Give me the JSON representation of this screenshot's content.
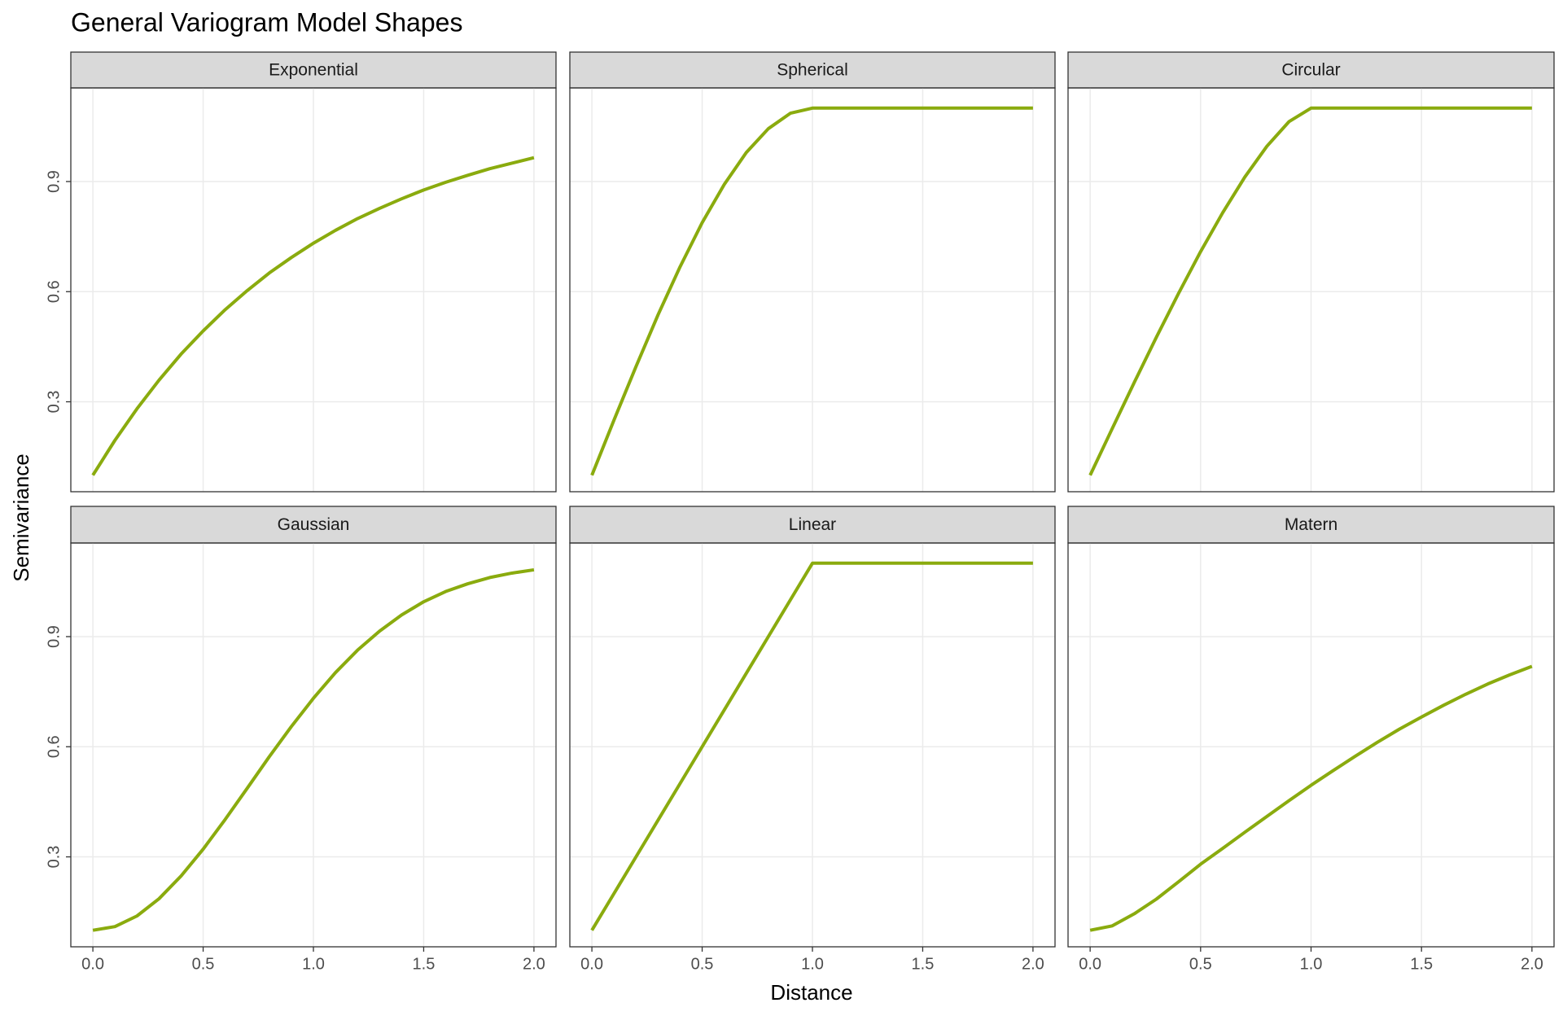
{
  "title": "General Variogram Model Shapes",
  "x_label": "Distance",
  "y_label": "Semivariance",
  "chart_data": [
    {
      "type": "line",
      "title": "Exponential",
      "color": "#8aab0e",
      "grid": true,
      "x": [
        0,
        0.1,
        0.2,
        0.3,
        0.4,
        0.5,
        0.6,
        0.7,
        0.8,
        0.9,
        1.0,
        1.1,
        1.2,
        1.3,
        1.4,
        1.5,
        1.6,
        1.7,
        1.8,
        1.9,
        2.0
      ],
      "values": [
        0.1,
        0.195,
        0.281,
        0.359,
        0.43,
        0.493,
        0.551,
        0.603,
        0.651,
        0.693,
        0.732,
        0.767,
        0.799,
        0.827,
        0.853,
        0.877,
        0.898,
        0.917,
        0.935,
        0.95,
        0.965
      ],
      "xlim": [
        -0.1,
        2.1
      ],
      "ylim": [
        0.055,
        1.155
      ],
      "xticks": [
        {
          "value": 0,
          "label": "0.0"
        },
        {
          "value": 0.5,
          "label": "0.5"
        },
        {
          "value": 1,
          "label": "1.0"
        },
        {
          "value": 1.5,
          "label": "1.5"
        },
        {
          "value": 2,
          "label": "2.0"
        }
      ],
      "yticks": [
        0.3,
        0.6,
        0.9
      ]
    },
    {
      "type": "line",
      "title": "Spherical",
      "color": "#8aab0e",
      "grid": true,
      "x": [
        0,
        0.1,
        0.2,
        0.3,
        0.4,
        0.5,
        0.6,
        0.7,
        0.8,
        0.9,
        1.0,
        1.1,
        1.2,
        1.3,
        1.4,
        1.5,
        1.6,
        1.7,
        1.8,
        1.9,
        2.0
      ],
      "values": [
        0.1,
        0.25,
        0.396,
        0.537,
        0.668,
        0.788,
        0.892,
        0.979,
        1.044,
        1.086,
        1.1,
        1.1,
        1.1,
        1.1,
        1.1,
        1.1,
        1.1,
        1.1,
        1.1,
        1.1,
        1.1
      ],
      "xlim": [
        -0.1,
        2.1
      ],
      "ylim": [
        0.055,
        1.155
      ],
      "xticks": [
        {
          "value": 0,
          "label": "0.0"
        },
        {
          "value": 0.5,
          "label": "0.5"
        },
        {
          "value": 1,
          "label": "1.0"
        },
        {
          "value": 1.5,
          "label": "1.5"
        },
        {
          "value": 2,
          "label": "2.0"
        }
      ],
      "yticks": [
        0.3,
        0.6,
        0.9
      ]
    },
    {
      "type": "line",
      "title": "Circular",
      "color": "#8aab0e",
      "grid": true,
      "x": [
        0,
        0.1,
        0.2,
        0.3,
        0.4,
        0.5,
        0.6,
        0.7,
        0.8,
        0.9,
        1.0,
        1.1,
        1.2,
        1.3,
        1.4,
        1.5,
        1.6,
        1.7,
        1.8,
        1.9,
        2.0
      ],
      "values": [
        0.1,
        0.227,
        0.353,
        0.476,
        0.595,
        0.709,
        0.815,
        0.912,
        0.996,
        1.063,
        1.1,
        1.1,
        1.1,
        1.1,
        1.1,
        1.1,
        1.1,
        1.1,
        1.1,
        1.1,
        1.1
      ],
      "xlim": [
        -0.1,
        2.1
      ],
      "ylim": [
        0.055,
        1.155
      ],
      "xticks": [
        {
          "value": 0,
          "label": "0.0"
        },
        {
          "value": 0.5,
          "label": "0.5"
        },
        {
          "value": 1,
          "label": "1.0"
        },
        {
          "value": 1.5,
          "label": "1.5"
        },
        {
          "value": 2,
          "label": "2.0"
        }
      ],
      "yticks": [
        0.3,
        0.6,
        0.9
      ]
    },
    {
      "type": "line",
      "title": "Gaussian",
      "color": "#8aab0e",
      "grid": true,
      "x": [
        0,
        0.1,
        0.2,
        0.3,
        0.4,
        0.5,
        0.6,
        0.7,
        0.8,
        0.9,
        1.0,
        1.1,
        1.2,
        1.3,
        1.4,
        1.5,
        1.6,
        1.7,
        1.8,
        1.9,
        2.0
      ],
      "values": [
        0.1,
        0.11,
        0.139,
        0.186,
        0.248,
        0.321,
        0.402,
        0.487,
        0.573,
        0.655,
        0.732,
        0.802,
        0.863,
        0.915,
        0.959,
        0.995,
        1.023,
        1.044,
        1.061,
        1.073,
        1.082
      ],
      "xlim": [
        -0.1,
        2.1
      ],
      "ylim": [
        0.055,
        1.155
      ],
      "xticks": [
        {
          "value": 0,
          "label": "0.0"
        },
        {
          "value": 0.5,
          "label": "0.5"
        },
        {
          "value": 1,
          "label": "1.0"
        },
        {
          "value": 1.5,
          "label": "1.5"
        },
        {
          "value": 2,
          "label": "2.0"
        }
      ],
      "yticks": [
        0.3,
        0.6,
        0.9
      ]
    },
    {
      "type": "line",
      "title": "Linear",
      "color": "#8aab0e",
      "grid": true,
      "x": [
        0,
        0.1,
        0.2,
        0.3,
        0.4,
        0.5,
        0.6,
        0.7,
        0.8,
        0.9,
        1.0,
        1.1,
        1.2,
        1.3,
        1.4,
        1.5,
        1.6,
        1.7,
        1.8,
        1.9,
        2.0
      ],
      "values": [
        0.1,
        0.2,
        0.3,
        0.4,
        0.5,
        0.6,
        0.7,
        0.8,
        0.9,
        1.0,
        1.1,
        1.1,
        1.1,
        1.1,
        1.1,
        1.1,
        1.1,
        1.1,
        1.1,
        1.1,
        1.1
      ],
      "xlim": [
        -0.1,
        2.1
      ],
      "ylim": [
        0.055,
        1.155
      ],
      "xticks": [
        {
          "value": 0,
          "label": "0.0"
        },
        {
          "value": 0.5,
          "label": "0.5"
        },
        {
          "value": 1,
          "label": "1.0"
        },
        {
          "value": 1.5,
          "label": "1.5"
        },
        {
          "value": 2,
          "label": "2.0"
        }
      ],
      "yticks": [
        0.3,
        0.6,
        0.9
      ]
    },
    {
      "type": "line",
      "title": "Matern",
      "color": "#8aab0e",
      "grid": true,
      "x": [
        0,
        0.1,
        0.2,
        0.3,
        0.4,
        0.5,
        0.6,
        0.7,
        0.8,
        0.9,
        1.0,
        1.1,
        1.2,
        1.3,
        1.4,
        1.5,
        1.6,
        1.7,
        1.8,
        1.9,
        2.0
      ],
      "values": [
        0.1,
        0.112,
        0.145,
        0.185,
        0.232,
        0.28,
        0.323,
        0.367,
        0.41,
        0.453,
        0.495,
        0.535,
        0.574,
        0.612,
        0.648,
        0.681,
        0.713,
        0.743,
        0.771,
        0.796,
        0.819
      ],
      "xlim": [
        -0.1,
        2.1
      ],
      "ylim": [
        0.055,
        1.155
      ],
      "xticks": [
        {
          "value": 0,
          "label": "0.0"
        },
        {
          "value": 0.5,
          "label": "0.5"
        },
        {
          "value": 1,
          "label": "1.0"
        },
        {
          "value": 1.5,
          "label": "1.5"
        },
        {
          "value": 2,
          "label": "2.0"
        }
      ],
      "yticks": [
        0.3,
        0.6,
        0.9
      ]
    }
  ]
}
